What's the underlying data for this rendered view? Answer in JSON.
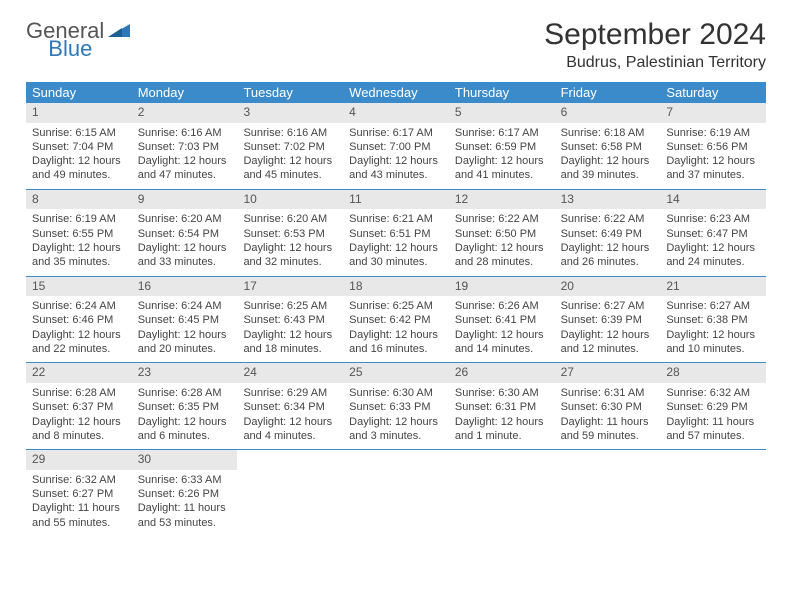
{
  "logo": {
    "general": "General",
    "blue": "Blue"
  },
  "title": "September 2024",
  "location": "Budrus, Palestinian Territory",
  "colors": {
    "header_bg": "#3b8bca",
    "header_text": "#ffffff",
    "daynum_bg": "#e8e8e8",
    "border": "#3b8bca",
    "logo_general": "#555555",
    "logo_blue": "#2e77b8"
  },
  "day_names": [
    "Sunday",
    "Monday",
    "Tuesday",
    "Wednesday",
    "Thursday",
    "Friday",
    "Saturday"
  ],
  "days": [
    {
      "n": "1",
      "sr": "Sunrise: 6:15 AM",
      "ss": "Sunset: 7:04 PM",
      "dl": "Daylight: 12 hours and 49 minutes."
    },
    {
      "n": "2",
      "sr": "Sunrise: 6:16 AM",
      "ss": "Sunset: 7:03 PM",
      "dl": "Daylight: 12 hours and 47 minutes."
    },
    {
      "n": "3",
      "sr": "Sunrise: 6:16 AM",
      "ss": "Sunset: 7:02 PM",
      "dl": "Daylight: 12 hours and 45 minutes."
    },
    {
      "n": "4",
      "sr": "Sunrise: 6:17 AM",
      "ss": "Sunset: 7:00 PM",
      "dl": "Daylight: 12 hours and 43 minutes."
    },
    {
      "n": "5",
      "sr": "Sunrise: 6:17 AM",
      "ss": "Sunset: 6:59 PM",
      "dl": "Daylight: 12 hours and 41 minutes."
    },
    {
      "n": "6",
      "sr": "Sunrise: 6:18 AM",
      "ss": "Sunset: 6:58 PM",
      "dl": "Daylight: 12 hours and 39 minutes."
    },
    {
      "n": "7",
      "sr": "Sunrise: 6:19 AM",
      "ss": "Sunset: 6:56 PM",
      "dl": "Daylight: 12 hours and 37 minutes."
    },
    {
      "n": "8",
      "sr": "Sunrise: 6:19 AM",
      "ss": "Sunset: 6:55 PM",
      "dl": "Daylight: 12 hours and 35 minutes."
    },
    {
      "n": "9",
      "sr": "Sunrise: 6:20 AM",
      "ss": "Sunset: 6:54 PM",
      "dl": "Daylight: 12 hours and 33 minutes."
    },
    {
      "n": "10",
      "sr": "Sunrise: 6:20 AM",
      "ss": "Sunset: 6:53 PM",
      "dl": "Daylight: 12 hours and 32 minutes."
    },
    {
      "n": "11",
      "sr": "Sunrise: 6:21 AM",
      "ss": "Sunset: 6:51 PM",
      "dl": "Daylight: 12 hours and 30 minutes."
    },
    {
      "n": "12",
      "sr": "Sunrise: 6:22 AM",
      "ss": "Sunset: 6:50 PM",
      "dl": "Daylight: 12 hours and 28 minutes."
    },
    {
      "n": "13",
      "sr": "Sunrise: 6:22 AM",
      "ss": "Sunset: 6:49 PM",
      "dl": "Daylight: 12 hours and 26 minutes."
    },
    {
      "n": "14",
      "sr": "Sunrise: 6:23 AM",
      "ss": "Sunset: 6:47 PM",
      "dl": "Daylight: 12 hours and 24 minutes."
    },
    {
      "n": "15",
      "sr": "Sunrise: 6:24 AM",
      "ss": "Sunset: 6:46 PM",
      "dl": "Daylight: 12 hours and 22 minutes."
    },
    {
      "n": "16",
      "sr": "Sunrise: 6:24 AM",
      "ss": "Sunset: 6:45 PM",
      "dl": "Daylight: 12 hours and 20 minutes."
    },
    {
      "n": "17",
      "sr": "Sunrise: 6:25 AM",
      "ss": "Sunset: 6:43 PM",
      "dl": "Daylight: 12 hours and 18 minutes."
    },
    {
      "n": "18",
      "sr": "Sunrise: 6:25 AM",
      "ss": "Sunset: 6:42 PM",
      "dl": "Daylight: 12 hours and 16 minutes."
    },
    {
      "n": "19",
      "sr": "Sunrise: 6:26 AM",
      "ss": "Sunset: 6:41 PM",
      "dl": "Daylight: 12 hours and 14 minutes."
    },
    {
      "n": "20",
      "sr": "Sunrise: 6:27 AM",
      "ss": "Sunset: 6:39 PM",
      "dl": "Daylight: 12 hours and 12 minutes."
    },
    {
      "n": "21",
      "sr": "Sunrise: 6:27 AM",
      "ss": "Sunset: 6:38 PM",
      "dl": "Daylight: 12 hours and 10 minutes."
    },
    {
      "n": "22",
      "sr": "Sunrise: 6:28 AM",
      "ss": "Sunset: 6:37 PM",
      "dl": "Daylight: 12 hours and 8 minutes."
    },
    {
      "n": "23",
      "sr": "Sunrise: 6:28 AM",
      "ss": "Sunset: 6:35 PM",
      "dl": "Daylight: 12 hours and 6 minutes."
    },
    {
      "n": "24",
      "sr": "Sunrise: 6:29 AM",
      "ss": "Sunset: 6:34 PM",
      "dl": "Daylight: 12 hours and 4 minutes."
    },
    {
      "n": "25",
      "sr": "Sunrise: 6:30 AM",
      "ss": "Sunset: 6:33 PM",
      "dl": "Daylight: 12 hours and 3 minutes."
    },
    {
      "n": "26",
      "sr": "Sunrise: 6:30 AM",
      "ss": "Sunset: 6:31 PM",
      "dl": "Daylight: 12 hours and 1 minute."
    },
    {
      "n": "27",
      "sr": "Sunrise: 6:31 AM",
      "ss": "Sunset: 6:30 PM",
      "dl": "Daylight: 11 hours and 59 minutes."
    },
    {
      "n": "28",
      "sr": "Sunrise: 6:32 AM",
      "ss": "Sunset: 6:29 PM",
      "dl": "Daylight: 11 hours and 57 minutes."
    },
    {
      "n": "29",
      "sr": "Sunrise: 6:32 AM",
      "ss": "Sunset: 6:27 PM",
      "dl": "Daylight: 11 hours and 55 minutes."
    },
    {
      "n": "30",
      "sr": "Sunrise: 6:33 AM",
      "ss": "Sunset: 6:26 PM",
      "dl": "Daylight: 11 hours and 53 minutes."
    }
  ]
}
